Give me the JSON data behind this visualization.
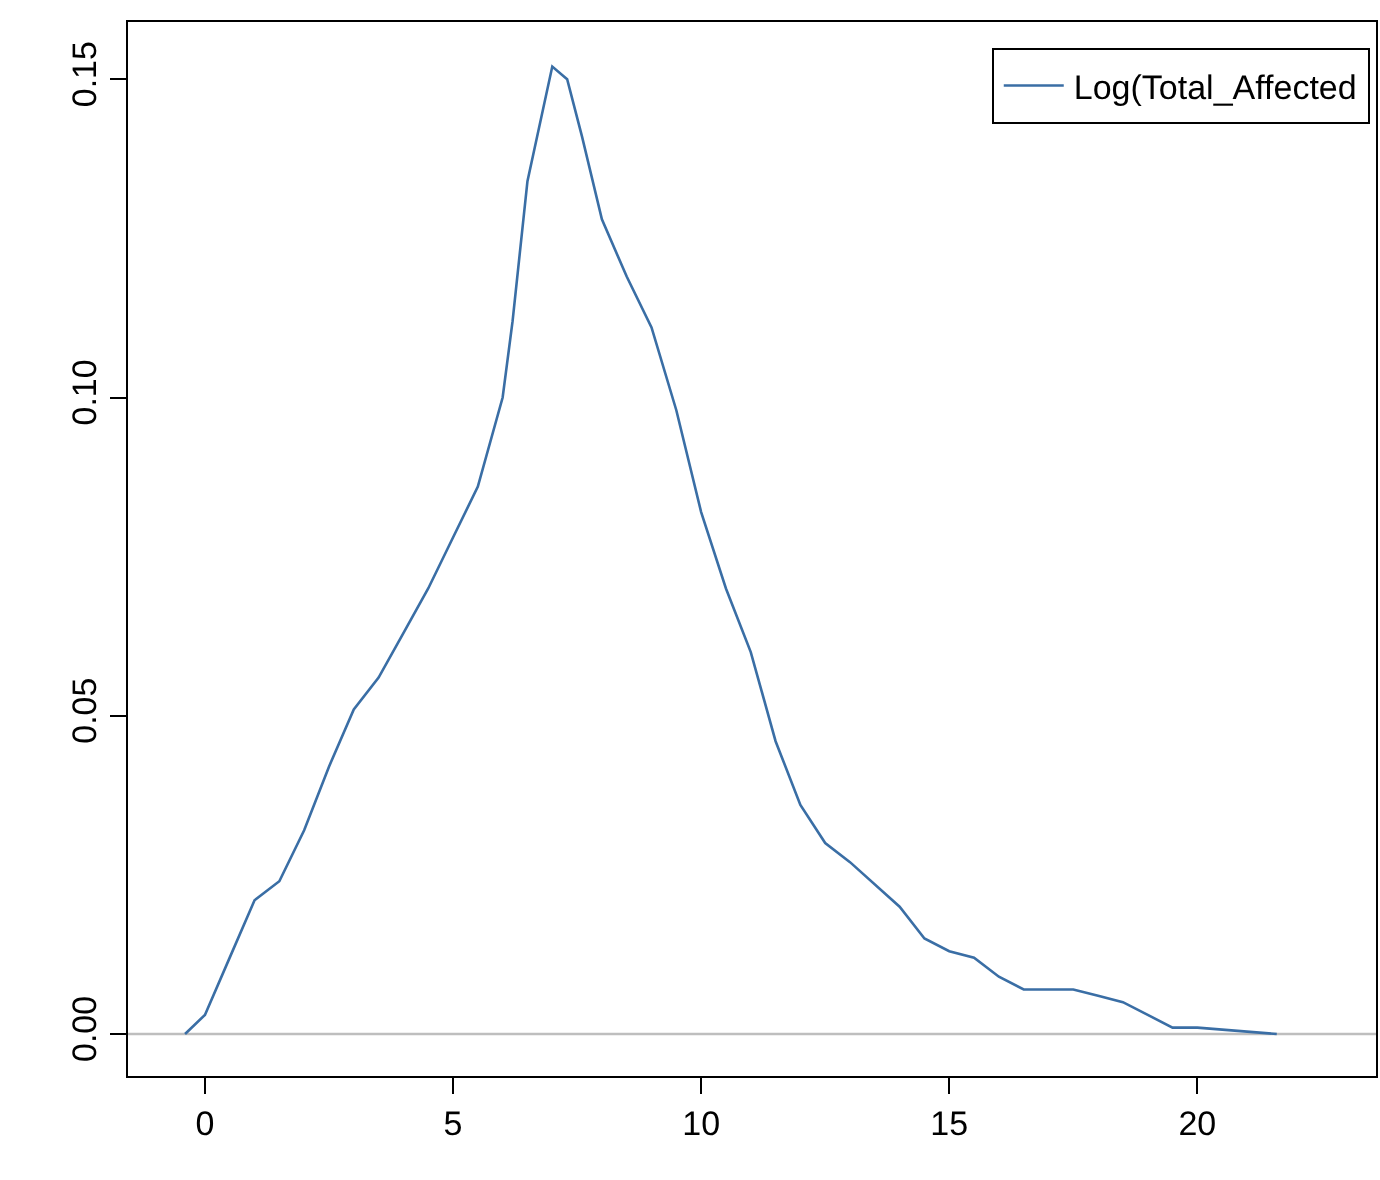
{
  "chart_data": {
    "type": "line",
    "x": [
      -0.4,
      0,
      0.5,
      1,
      1.5,
      2,
      2.5,
      3,
      3.5,
      4,
      4.5,
      5,
      5.5,
      6,
      6.2,
      6.5,
      7,
      7.3,
      7.6,
      8,
      8.5,
      9,
      9.5,
      10,
      10.5,
      11,
      11.5,
      12,
      12.5,
      13,
      14,
      14.5,
      15,
      15.5,
      16,
      16.5,
      17,
      17.5,
      18,
      18.5,
      19,
      19.5,
      20,
      21.6
    ],
    "series": [
      {
        "name": "Log(Total_Affected",
        "color": "#3a6ea5",
        "values": [
          0,
          0.003,
          0.012,
          0.021,
          0.024,
          0.032,
          0.042,
          0.051,
          0.056,
          0.063,
          0.07,
          0.078,
          0.086,
          0.1,
          0.112,
          0.134,
          0.152,
          0.15,
          0.141,
          0.128,
          0.119,
          0.111,
          0.098,
          0.082,
          0.07,
          0.06,
          0.046,
          0.036,
          0.03,
          0.027,
          0.02,
          0.015,
          0.013,
          0.012,
          0.009,
          0.007,
          0.007,
          0.007,
          0.006,
          0.005,
          0.003,
          0.001,
          0.001,
          0
        ]
      }
    ],
    "xlim": [
      -1.55,
      23.6
    ],
    "ylim": [
      -0.0066,
      0.159
    ],
    "xticks": [
      0,
      5,
      10,
      15,
      20
    ],
    "yticks": [
      {
        "value": 0,
        "label": "0.00"
      },
      {
        "value": 0.05,
        "label": "0.05"
      },
      {
        "value": 0.1,
        "label": "0.10"
      },
      {
        "value": 0.15,
        "label": "0.15"
      }
    ],
    "ref_lines": [
      {
        "axis": "y",
        "value": 0,
        "color": "#bebebe"
      }
    ],
    "legend": "top right",
    "grid": false
  }
}
